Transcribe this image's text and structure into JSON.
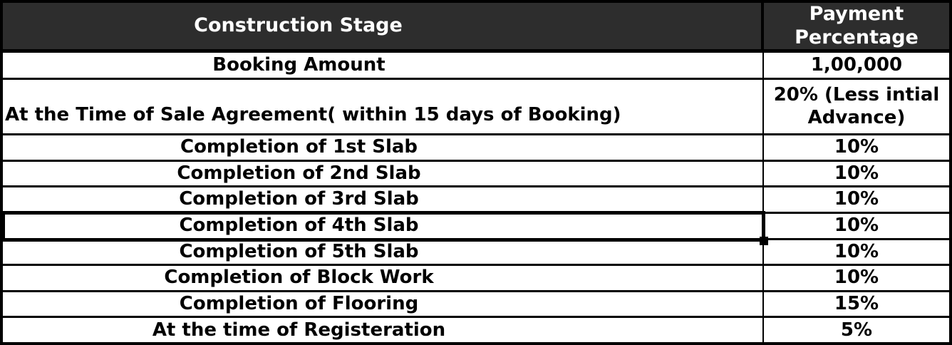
{
  "colors": {
    "header_bg": "#2d2d2d",
    "header_text": "#ffffff",
    "body_bg": "#ffffff",
    "body_text": "#000000",
    "border": "#000000"
  },
  "table": {
    "columns": [
      {
        "label": "Construction Stage"
      },
      {
        "label": "Payment\nPercentage"
      }
    ],
    "rows": [
      {
        "stage": "Booking Amount",
        "payment": "1,00,000"
      },
      {
        "stage": "At the Time of  Sale Agreement( within 15 days of Booking)",
        "payment": "20% (Less intial\nAdvance)"
      },
      {
        "stage": "Completion of 1st Slab",
        "payment": "10%"
      },
      {
        "stage": "Completion of 2nd Slab",
        "payment": "10%"
      },
      {
        "stage": "Completion of 3rd Slab",
        "payment": "10%"
      },
      {
        "stage": "Completion of 4th Slab",
        "payment": "10%",
        "selected": true
      },
      {
        "stage": "Completion of 5th Slab",
        "payment": "10%"
      },
      {
        "stage": "Completion of Block Work",
        "payment": "10%"
      },
      {
        "stage": "Completion of Flooring",
        "payment": "15%"
      },
      {
        "stage": "At the time of Registeration",
        "payment": "5%"
      }
    ]
  }
}
